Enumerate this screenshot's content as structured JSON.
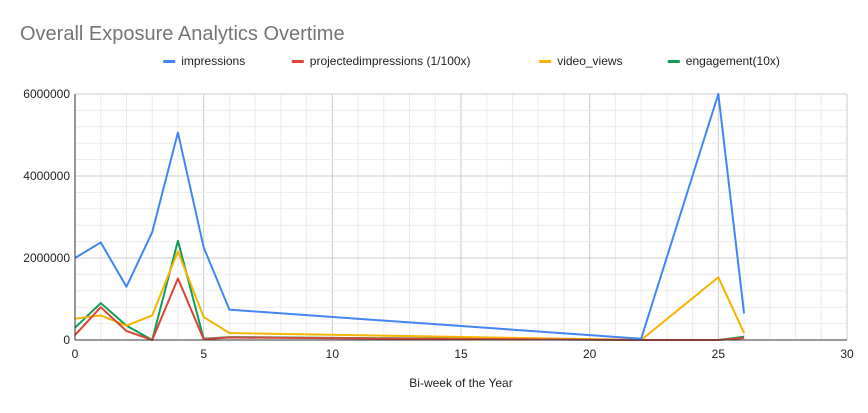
{
  "chart_data": {
    "type": "line",
    "title": "Overall Exposure Analytics Overtime",
    "xlabel": "Bi-week of the Year",
    "ylabel": "",
    "xlim": [
      0,
      30
    ],
    "ylim": [
      0,
      6000000
    ],
    "x_ticks": [
      "0",
      "5",
      "10",
      "15",
      "20",
      "25",
      "30"
    ],
    "y_ticks": [
      "0",
      "2000000",
      "4000000",
      "6000000"
    ],
    "grid": true,
    "legend_position": "top",
    "x": [
      0,
      1,
      2,
      3,
      4,
      5,
      6,
      22,
      25,
      26
    ],
    "series": [
      {
        "name": "impressions",
        "color": "#4285F4",
        "values": [
          2000000,
          2380000,
          1300000,
          2630000,
          5060000,
          2260000,
          740000,
          30000,
          6000000,
          650000
        ]
      },
      {
        "name": "projectedimpressions (1/100x)",
        "color": "#DB4437",
        "values": [
          120000,
          800000,
          220000,
          0,
          1500000,
          20000,
          60000,
          0,
          0,
          50000
        ]
      },
      {
        "name": "video_views",
        "color": "#F4B400",
        "values": [
          520000,
          600000,
          350000,
          600000,
          2160000,
          560000,
          170000,
          0,
          1530000,
          170000
        ]
      },
      {
        "name": "engagement(10x)",
        "color": "#0F9D58",
        "values": [
          300000,
          900000,
          350000,
          0,
          2420000,
          30000,
          70000,
          0,
          0,
          80000
        ]
      }
    ]
  }
}
